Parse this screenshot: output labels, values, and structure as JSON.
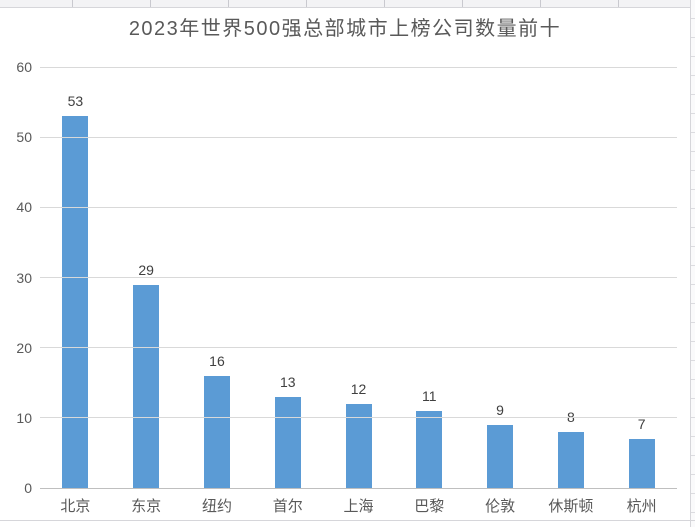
{
  "page": {
    "background": "#ffffff",
    "spreadsheet_gridline_color": "#d6d6da"
  },
  "chart_data": {
    "type": "bar",
    "title": "2023年世界500强总部城市上榜公司数量前十",
    "categories": [
      "北京",
      "东京",
      "纽约",
      "首尔",
      "上海",
      "巴黎",
      "伦敦",
      "休斯顿",
      "杭州"
    ],
    "values": [
      53,
      29,
      16,
      13,
      12,
      11,
      9,
      8,
      7
    ],
    "data_labels": [
      53,
      29,
      16,
      13,
      12,
      11,
      9,
      8,
      7
    ],
    "xlabel": "",
    "ylabel": "",
    "ylim": [
      0,
      60
    ],
    "yticks": [
      0,
      10,
      20,
      30,
      40,
      50,
      60
    ],
    "grid": "horizontal",
    "legend": "none",
    "bar_color": "#5B9BD5",
    "title_color": "#595959",
    "axis_tick_color": "#595959",
    "data_label_color": "#404040",
    "gridline_color": "#d9d9d9",
    "axis_line_color": "#bfbfbf"
  }
}
